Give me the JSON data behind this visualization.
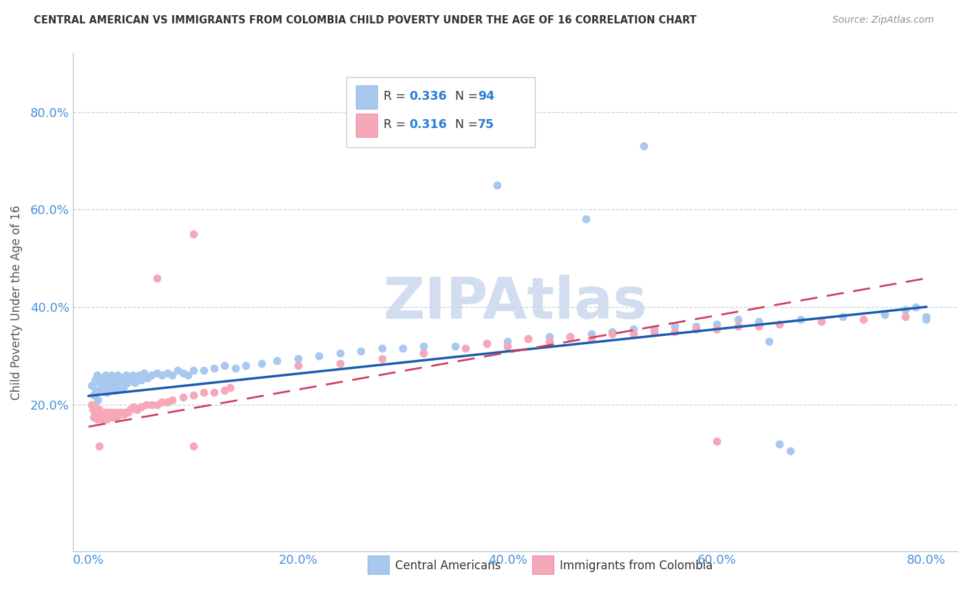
{
  "title": "CENTRAL AMERICAN VS IMMIGRANTS FROM COLOMBIA CHILD POVERTY UNDER THE AGE OF 16 CORRELATION CHART",
  "source": "Source: ZipAtlas.com",
  "ylabel": "Child Poverty Under the Age of 16",
  "series1_color": "#a8c8f0",
  "series2_color": "#f5a8b8",
  "trend1_color": "#1a5cb0",
  "trend2_color": "#d04060",
  "watermark": "ZIPAtlas",
  "watermark_color": "#ccd8ee",
  "background_color": "#ffffff",
  "series1_label": "Central Americans",
  "series2_label": "Immigrants from Colombia",
  "tick_color": "#4a90d9",
  "grid_color": "#c8d0dc",
  "title_color": "#333333",
  "ylabel_color": "#555555",
  "blue_intercept": 0.218,
  "blue_slope": 0.228,
  "pink_intercept": 0.155,
  "pink_slope": 0.38,
  "series1_x": [
    0.003,
    0.005,
    0.006,
    0.007,
    0.008,
    0.009,
    0.01,
    0.011,
    0.012,
    0.013,
    0.014,
    0.015,
    0.016,
    0.017,
    0.018,
    0.019,
    0.02,
    0.021,
    0.022,
    0.023,
    0.024,
    0.025,
    0.026,
    0.027,
    0.028,
    0.029,
    0.03,
    0.031,
    0.032,
    0.033,
    0.034,
    0.035,
    0.036,
    0.037,
    0.038,
    0.04,
    0.042,
    0.044,
    0.046,
    0.048,
    0.05,
    0.053,
    0.056,
    0.06,
    0.065,
    0.07,
    0.075,
    0.08,
    0.085,
    0.09,
    0.095,
    0.1,
    0.11,
    0.12,
    0.13,
    0.14,
    0.15,
    0.165,
    0.18,
    0.2,
    0.22,
    0.24,
    0.26,
    0.28,
    0.3,
    0.32,
    0.35,
    0.38,
    0.4,
    0.42,
    0.44,
    0.46,
    0.48,
    0.5,
    0.52,
    0.54,
    0.56,
    0.58,
    0.6,
    0.64,
    0.68,
    0.72,
    0.76,
    0.475,
    0.39,
    0.53,
    0.62,
    0.65,
    0.66,
    0.67,
    0.78,
    0.79,
    0.8,
    0.8
  ],
  "series1_y": [
    0.24,
    0.22,
    0.25,
    0.23,
    0.26,
    0.21,
    0.245,
    0.255,
    0.23,
    0.235,
    0.25,
    0.24,
    0.26,
    0.225,
    0.245,
    0.23,
    0.25,
    0.24,
    0.26,
    0.235,
    0.245,
    0.255,
    0.23,
    0.24,
    0.26,
    0.235,
    0.25,
    0.245,
    0.255,
    0.235,
    0.24,
    0.25,
    0.26,
    0.245,
    0.255,
    0.25,
    0.26,
    0.245,
    0.255,
    0.26,
    0.25,
    0.265,
    0.255,
    0.26,
    0.265,
    0.26,
    0.265,
    0.26,
    0.27,
    0.265,
    0.26,
    0.27,
    0.27,
    0.275,
    0.28,
    0.275,
    0.28,
    0.285,
    0.29,
    0.295,
    0.3,
    0.305,
    0.31,
    0.315,
    0.315,
    0.32,
    0.32,
    0.325,
    0.33,
    0.335,
    0.34,
    0.34,
    0.345,
    0.35,
    0.355,
    0.355,
    0.36,
    0.36,
    0.365,
    0.37,
    0.375,
    0.38,
    0.385,
    0.58,
    0.65,
    0.73,
    0.375,
    0.33,
    0.12,
    0.105,
    0.395,
    0.4,
    0.38,
    0.375
  ],
  "series2_x": [
    0.003,
    0.004,
    0.005,
    0.006,
    0.007,
    0.008,
    0.009,
    0.01,
    0.011,
    0.012,
    0.013,
    0.014,
    0.015,
    0.016,
    0.017,
    0.018,
    0.019,
    0.02,
    0.021,
    0.022,
    0.023,
    0.024,
    0.025,
    0.026,
    0.027,
    0.028,
    0.03,
    0.032,
    0.034,
    0.036,
    0.038,
    0.04,
    0.043,
    0.046,
    0.05,
    0.055,
    0.06,
    0.065,
    0.07,
    0.075,
    0.08,
    0.09,
    0.1,
    0.11,
    0.12,
    0.13,
    0.1,
    0.135,
    0.065,
    0.38,
    0.42,
    0.46,
    0.5,
    0.54,
    0.58,
    0.62,
    0.66,
    0.7,
    0.74,
    0.78,
    0.2,
    0.24,
    0.28,
    0.32,
    0.36,
    0.4,
    0.44,
    0.48,
    0.52,
    0.56,
    0.6,
    0.64,
    0.1,
    0.01,
    0.6
  ],
  "series2_y": [
    0.2,
    0.19,
    0.175,
    0.185,
    0.195,
    0.17,
    0.18,
    0.19,
    0.175,
    0.185,
    0.17,
    0.18,
    0.175,
    0.185,
    0.17,
    0.18,
    0.185,
    0.175,
    0.185,
    0.175,
    0.18,
    0.175,
    0.18,
    0.185,
    0.175,
    0.18,
    0.185,
    0.185,
    0.18,
    0.185,
    0.185,
    0.19,
    0.195,
    0.19,
    0.195,
    0.2,
    0.2,
    0.2,
    0.205,
    0.205,
    0.21,
    0.215,
    0.22,
    0.225,
    0.225,
    0.23,
    0.55,
    0.235,
    0.46,
    0.325,
    0.335,
    0.34,
    0.345,
    0.35,
    0.355,
    0.36,
    0.365,
    0.37,
    0.375,
    0.38,
    0.28,
    0.285,
    0.295,
    0.305,
    0.315,
    0.32,
    0.33,
    0.335,
    0.345,
    0.35,
    0.355,
    0.36,
    0.115,
    0.115,
    0.125
  ]
}
